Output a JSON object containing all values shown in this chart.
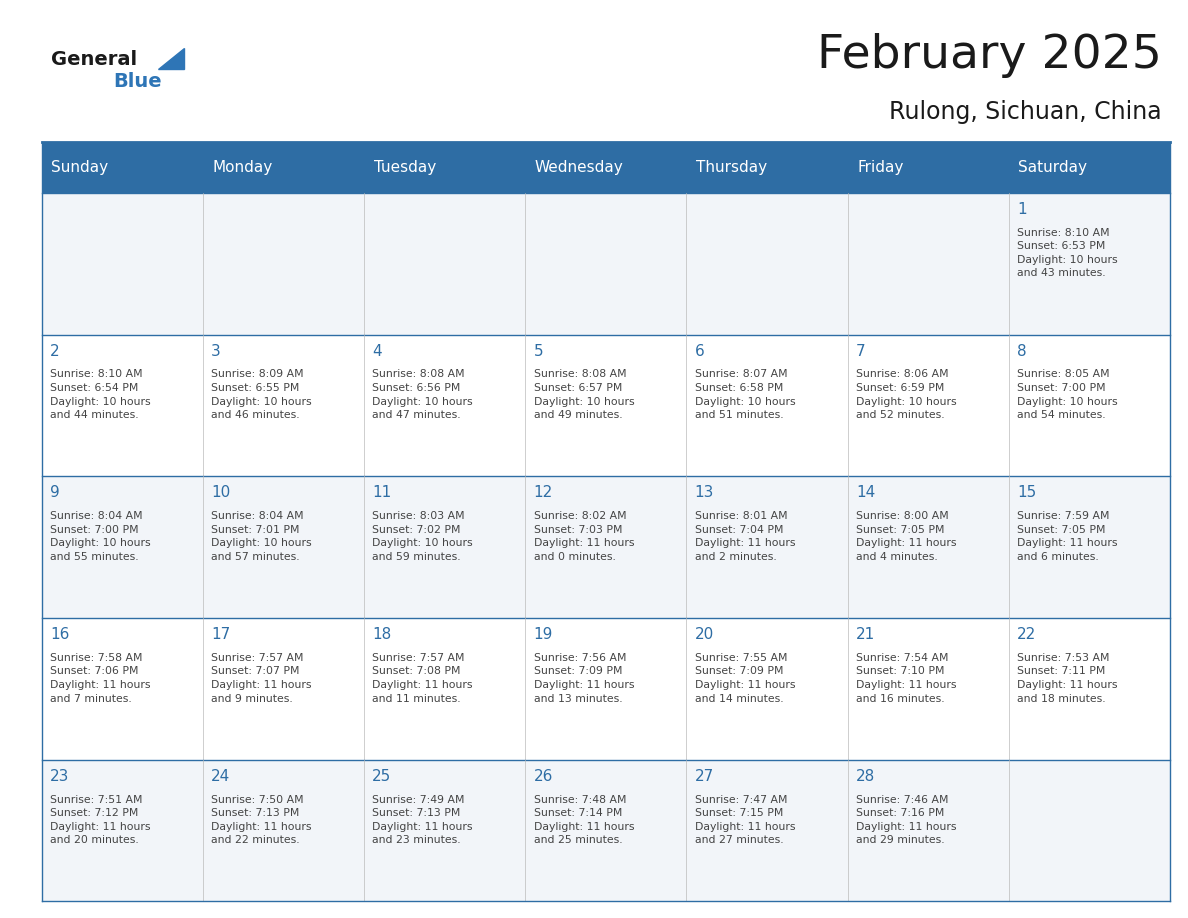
{
  "title": "February 2025",
  "subtitle": "Rulong, Sichuan, China",
  "header_bg": "#2E6DA4",
  "header_text_color": "#FFFFFF",
  "grid_line_color": "#2E6DA4",
  "day_number_color": "#2E6DA4",
  "text_color": "#444444",
  "days_of_week": [
    "Sunday",
    "Monday",
    "Tuesday",
    "Wednesday",
    "Thursday",
    "Friday",
    "Saturday"
  ],
  "weeks": [
    [
      {
        "day": null,
        "info": ""
      },
      {
        "day": null,
        "info": ""
      },
      {
        "day": null,
        "info": ""
      },
      {
        "day": null,
        "info": ""
      },
      {
        "day": null,
        "info": ""
      },
      {
        "day": null,
        "info": ""
      },
      {
        "day": 1,
        "info": "Sunrise: 8:10 AM\nSunset: 6:53 PM\nDaylight: 10 hours\nand 43 minutes."
      }
    ],
    [
      {
        "day": 2,
        "info": "Sunrise: 8:10 AM\nSunset: 6:54 PM\nDaylight: 10 hours\nand 44 minutes."
      },
      {
        "day": 3,
        "info": "Sunrise: 8:09 AM\nSunset: 6:55 PM\nDaylight: 10 hours\nand 46 minutes."
      },
      {
        "day": 4,
        "info": "Sunrise: 8:08 AM\nSunset: 6:56 PM\nDaylight: 10 hours\nand 47 minutes."
      },
      {
        "day": 5,
        "info": "Sunrise: 8:08 AM\nSunset: 6:57 PM\nDaylight: 10 hours\nand 49 minutes."
      },
      {
        "day": 6,
        "info": "Sunrise: 8:07 AM\nSunset: 6:58 PM\nDaylight: 10 hours\nand 51 minutes."
      },
      {
        "day": 7,
        "info": "Sunrise: 8:06 AM\nSunset: 6:59 PM\nDaylight: 10 hours\nand 52 minutes."
      },
      {
        "day": 8,
        "info": "Sunrise: 8:05 AM\nSunset: 7:00 PM\nDaylight: 10 hours\nand 54 minutes."
      }
    ],
    [
      {
        "day": 9,
        "info": "Sunrise: 8:04 AM\nSunset: 7:00 PM\nDaylight: 10 hours\nand 55 minutes."
      },
      {
        "day": 10,
        "info": "Sunrise: 8:04 AM\nSunset: 7:01 PM\nDaylight: 10 hours\nand 57 minutes."
      },
      {
        "day": 11,
        "info": "Sunrise: 8:03 AM\nSunset: 7:02 PM\nDaylight: 10 hours\nand 59 minutes."
      },
      {
        "day": 12,
        "info": "Sunrise: 8:02 AM\nSunset: 7:03 PM\nDaylight: 11 hours\nand 0 minutes."
      },
      {
        "day": 13,
        "info": "Sunrise: 8:01 AM\nSunset: 7:04 PM\nDaylight: 11 hours\nand 2 minutes."
      },
      {
        "day": 14,
        "info": "Sunrise: 8:00 AM\nSunset: 7:05 PM\nDaylight: 11 hours\nand 4 minutes."
      },
      {
        "day": 15,
        "info": "Sunrise: 7:59 AM\nSunset: 7:05 PM\nDaylight: 11 hours\nand 6 minutes."
      }
    ],
    [
      {
        "day": 16,
        "info": "Sunrise: 7:58 AM\nSunset: 7:06 PM\nDaylight: 11 hours\nand 7 minutes."
      },
      {
        "day": 17,
        "info": "Sunrise: 7:57 AM\nSunset: 7:07 PM\nDaylight: 11 hours\nand 9 minutes."
      },
      {
        "day": 18,
        "info": "Sunrise: 7:57 AM\nSunset: 7:08 PM\nDaylight: 11 hours\nand 11 minutes."
      },
      {
        "day": 19,
        "info": "Sunrise: 7:56 AM\nSunset: 7:09 PM\nDaylight: 11 hours\nand 13 minutes."
      },
      {
        "day": 20,
        "info": "Sunrise: 7:55 AM\nSunset: 7:09 PM\nDaylight: 11 hours\nand 14 minutes."
      },
      {
        "day": 21,
        "info": "Sunrise: 7:54 AM\nSunset: 7:10 PM\nDaylight: 11 hours\nand 16 minutes."
      },
      {
        "day": 22,
        "info": "Sunrise: 7:53 AM\nSunset: 7:11 PM\nDaylight: 11 hours\nand 18 minutes."
      }
    ],
    [
      {
        "day": 23,
        "info": "Sunrise: 7:51 AM\nSunset: 7:12 PM\nDaylight: 11 hours\nand 20 minutes."
      },
      {
        "day": 24,
        "info": "Sunrise: 7:50 AM\nSunset: 7:13 PM\nDaylight: 11 hours\nand 22 minutes."
      },
      {
        "day": 25,
        "info": "Sunrise: 7:49 AM\nSunset: 7:13 PM\nDaylight: 11 hours\nand 23 minutes."
      },
      {
        "day": 26,
        "info": "Sunrise: 7:48 AM\nSunset: 7:14 PM\nDaylight: 11 hours\nand 25 minutes."
      },
      {
        "day": 27,
        "info": "Sunrise: 7:47 AM\nSunset: 7:15 PM\nDaylight: 11 hours\nand 27 minutes."
      },
      {
        "day": 28,
        "info": "Sunrise: 7:46 AM\nSunset: 7:16 PM\nDaylight: 11 hours\nand 29 minutes."
      },
      {
        "day": null,
        "info": ""
      }
    ]
  ],
  "logo_general_color": "#1a1a1a",
  "logo_blue_color": "#2E75B6",
  "figsize": [
    11.88,
    9.18
  ],
  "dpi": 100
}
